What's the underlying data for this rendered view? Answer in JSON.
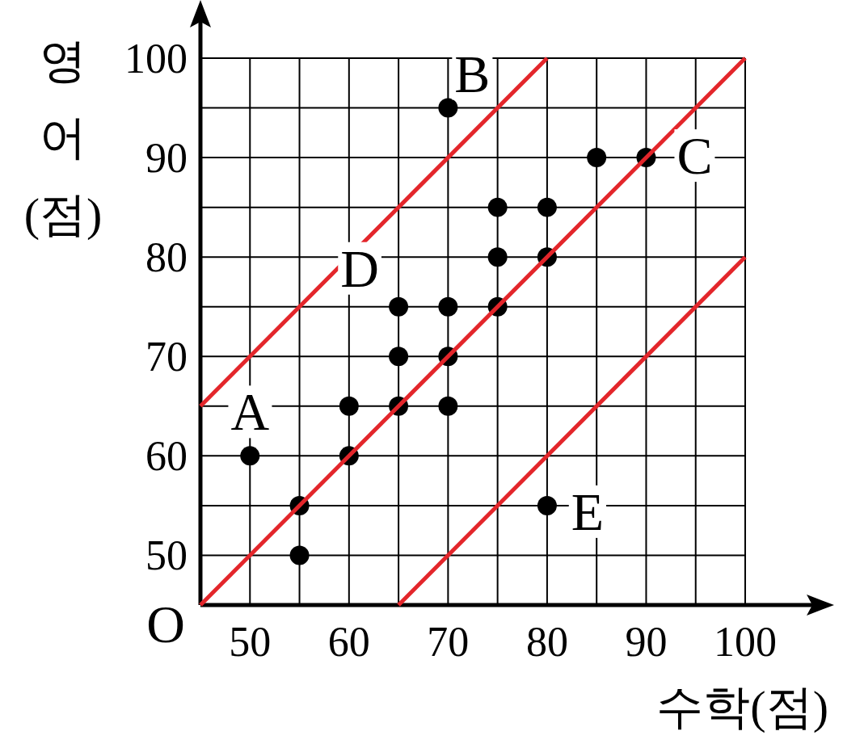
{
  "chart_data": {
    "type": "scatter",
    "xlabel": "수학(점)",
    "ylabel": "영어(점)",
    "xlim": [
      45,
      100
    ],
    "ylim": [
      45,
      100
    ],
    "xticks": [
      {
        "value": 45,
        "label": null
      },
      50,
      {
        "value": 55,
        "label": null
      },
      60,
      {
        "value": 65,
        "label": null
      },
      70,
      {
        "value": 75,
        "label": null
      },
      80,
      {
        "value": 85,
        "label": null
      },
      90,
      {
        "value": 95,
        "label": null
      },
      100
    ],
    "yticks": [
      {
        "value": 45,
        "label": null
      },
      50,
      {
        "value": 55,
        "label": null
      },
      60,
      {
        "value": 65,
        "label": null
      },
      70,
      {
        "value": 75,
        "label": null
      },
      80,
      {
        "value": 85,
        "label": null
      },
      90,
      {
        "value": 95,
        "label": null
      },
      100
    ],
    "grid": true,
    "series": [
      {
        "marker": "circle",
        "color": "#000000",
        "x": [
          50,
          55,
          55,
          60,
          60,
          65,
          65,
          65,
          70,
          70,
          70,
          70,
          75,
          75,
          75,
          80,
          80,
          80,
          85,
          90
        ],
        "values": [
          60,
          55,
          50,
          65,
          60,
          75,
          70,
          65,
          95,
          75,
          70,
          65,
          85,
          80,
          75,
          85,
          80,
          55,
          90,
          90
        ]
      },
      {
        "type": "line",
        "color": "#e3262b",
        "x": [
          45,
          80
        ],
        "values": [
          65,
          100
        ]
      },
      {
        "type": "line",
        "color": "#e3262b",
        "x": [
          45,
          100
        ],
        "values": [
          45,
          100
        ]
      },
      {
        "type": "line",
        "color": "#e3262b",
        "x": [
          65,
          100
        ],
        "values": [
          45,
          80
        ]
      }
    ],
    "annotations": [
      {
        "text": "A",
        "x": 50,
        "y": 60
      },
      {
        "text": "B",
        "x": 70,
        "y": 95
      },
      {
        "text": "C",
        "x": 90,
        "y": 90
      },
      {
        "text": "D",
        "x": 65,
        "y": 75
      },
      {
        "text": "E",
        "x": 80,
        "y": 55
      },
      "O"
    ]
  }
}
